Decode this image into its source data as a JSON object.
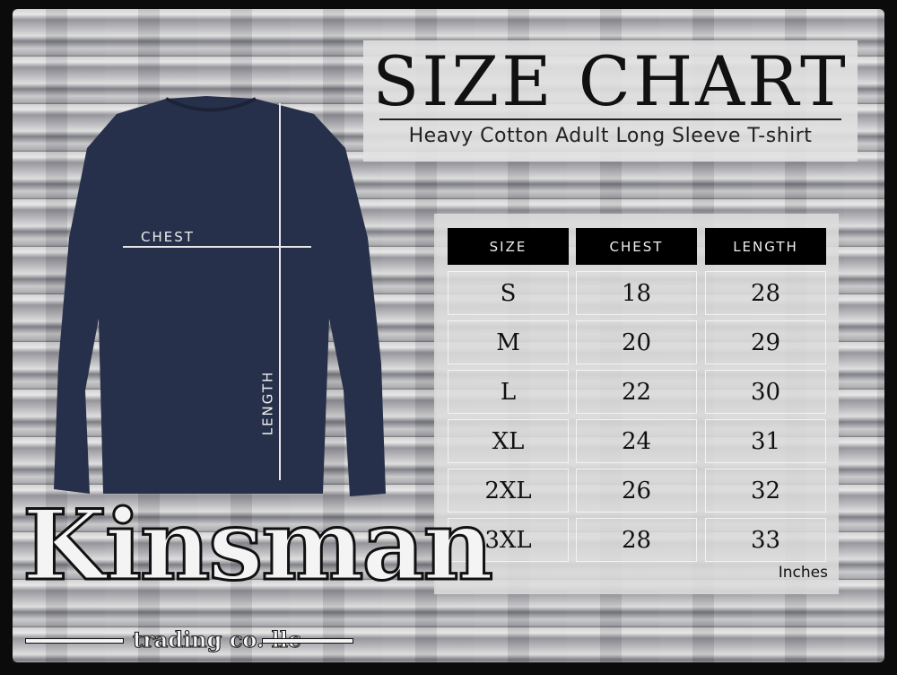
{
  "header": {
    "title": "SIZE CHART",
    "subtitle": "Heavy Cotton Adult Long Sleeve T-shirt"
  },
  "diagram": {
    "chest_label": "CHEST",
    "length_label": "LENGTH",
    "shirt_color": "#27304a"
  },
  "table": {
    "columns": [
      "SIZE",
      "CHEST",
      "LENGTH"
    ],
    "rows": [
      [
        "S",
        "18",
        "28"
      ],
      [
        "M",
        "20",
        "29"
      ],
      [
        "L",
        "22",
        "30"
      ],
      [
        "XL",
        "24",
        "31"
      ],
      [
        "2XL",
        "26",
        "32"
      ],
      [
        "3XL",
        "28",
        "33"
      ]
    ],
    "units": "Inches"
  },
  "brand": {
    "name": "Kinsman",
    "tagline": "trading co. llc"
  }
}
